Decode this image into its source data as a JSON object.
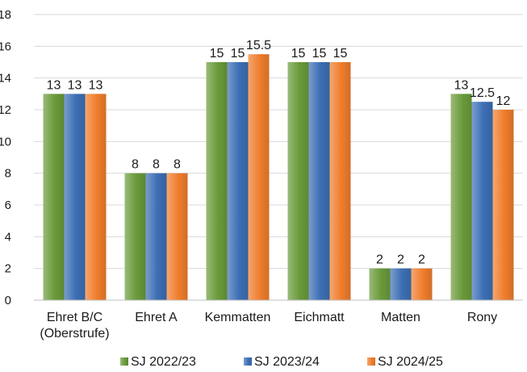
{
  "chart_data": {
    "type": "bar",
    "categories": [
      [
        "Ehret B/C",
        "(Oberstrufe)"
      ],
      [
        "Ehret A"
      ],
      [
        "Kemmatten"
      ],
      [
        "Eichmatt"
      ],
      [
        "Matten"
      ],
      [
        "Rony"
      ]
    ],
    "series": [
      {
        "name": "SJ 2022/23",
        "values": [
          13,
          8,
          15,
          15,
          2,
          13
        ],
        "labels": [
          "13",
          "8",
          "15",
          "15",
          "2",
          "13"
        ],
        "color": "#6a9a3a"
      },
      {
        "name": "SJ 2023/24",
        "values": [
          13,
          8,
          15,
          15,
          2,
          12.5
        ],
        "labels": [
          "13",
          "8",
          "15",
          "15",
          "2",
          "12.5"
        ],
        "color": "#3d6fb5"
      },
      {
        "name": "SJ 2024/25",
        "values": [
          13,
          8,
          15.5,
          15,
          2,
          12
        ],
        "labels": [
          "13",
          "8",
          "15.5",
          "15",
          "2",
          "12"
        ],
        "color": "#ef7d2c"
      }
    ],
    "ylim": [
      0,
      18
    ],
    "yticks": [
      "0",
      "2",
      "4",
      "6",
      "8",
      "10",
      "12",
      "14",
      "16",
      "18"
    ],
    "grid": true,
    "legend_position": "bottom",
    "title": "",
    "xlabel": "",
    "ylabel": ""
  }
}
